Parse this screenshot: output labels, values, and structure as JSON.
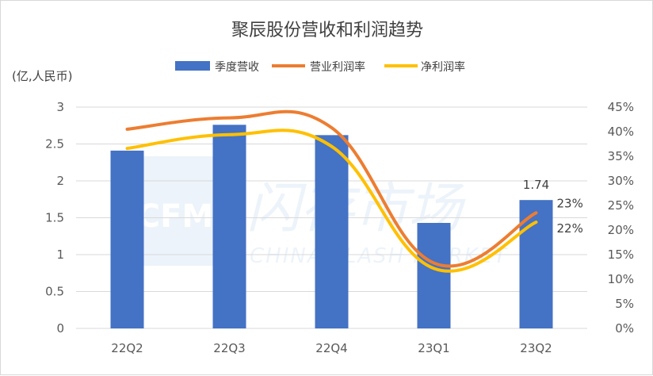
{
  "chart_data": {
    "type": "bar",
    "title": "聚辰股份营收和利润趋势",
    "ylabel_left": "(亿,人民币)",
    "categories": [
      "22Q2",
      "22Q3",
      "22Q4",
      "23Q1",
      "23Q2"
    ],
    "ylim_left": [
      0,
      3
    ],
    "yticks_left": [
      "0",
      "0.5",
      "1",
      "1.5",
      "2",
      "2.5",
      "3"
    ],
    "ylim_right": [
      0,
      0.45
    ],
    "yticks_right": [
      "0%",
      "5%",
      "10%",
      "15%",
      "20%",
      "25%",
      "30%",
      "35%",
      "40%",
      "45%"
    ],
    "grid": true,
    "legend_position": "top",
    "series": [
      {
        "name": "季度营收",
        "kind": "bar",
        "axis": "left",
        "color": "#4472c4",
        "values": [
          2.41,
          2.76,
          2.62,
          1.43,
          1.74
        ]
      },
      {
        "name": "营业利润率",
        "kind": "line",
        "axis": "right",
        "color": "#ed7d31",
        "values": [
          0.405,
          0.428,
          0.408,
          0.133,
          0.235
        ]
      },
      {
        "name": "净利润率",
        "kind": "line",
        "axis": "right",
        "color": "#ffc000",
        "values": [
          0.366,
          0.394,
          0.37,
          0.122,
          0.216
        ]
      }
    ],
    "data_labels": [
      {
        "series": "季度营收",
        "index": 4,
        "text": "1.74"
      },
      {
        "series": "营业利润率",
        "index": 4,
        "text": "23%"
      },
      {
        "series": "净利润率",
        "index": 4,
        "text": "22%"
      }
    ],
    "watermark": {
      "logo": "CFM",
      "cn": "闪存市场",
      "en": "CHINA FLASH MARKET"
    }
  }
}
